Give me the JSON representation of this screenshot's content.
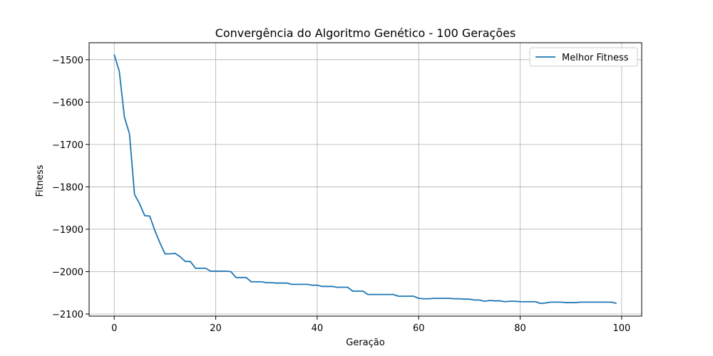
{
  "chart_data": {
    "type": "line",
    "title": "Convergência do Algoritmo Genético - 100 Gerações",
    "xlabel": "Geração",
    "ylabel": "Fitness",
    "xlim": [
      -4.95,
      103.95
    ],
    "ylim": [
      -2105,
      -1460
    ],
    "xticks": [
      0,
      20,
      40,
      60,
      80,
      100
    ],
    "xtick_labels": [
      "0",
      "20",
      "40",
      "60",
      "80",
      "100"
    ],
    "yticks": [
      -1500,
      -1600,
      -1700,
      -1800,
      -1900,
      -2000,
      -2100
    ],
    "ytick_labels": [
      "−1500",
      "−1600",
      "−1700",
      "−1800",
      "−1900",
      "−2000",
      "−2100"
    ],
    "grid": true,
    "legend_position": "top-right",
    "series": [
      {
        "name": "Melhor Fitness",
        "color": "#1f77b4",
        "x": [
          0,
          1,
          2,
          3,
          4,
          5,
          6,
          7,
          8,
          9,
          10,
          11,
          12,
          13,
          14,
          15,
          16,
          17,
          18,
          19,
          20,
          21,
          22,
          23,
          24,
          25,
          26,
          27,
          28,
          29,
          30,
          31,
          32,
          33,
          34,
          35,
          36,
          37,
          38,
          39,
          40,
          41,
          42,
          43,
          44,
          45,
          46,
          47,
          48,
          49,
          50,
          51,
          52,
          53,
          54,
          55,
          56,
          57,
          58,
          59,
          60,
          61,
          62,
          63,
          64,
          65,
          66,
          67,
          68,
          69,
          70,
          71,
          72,
          73,
          74,
          75,
          76,
          77,
          78,
          79,
          80,
          81,
          82,
          83,
          84,
          85,
          86,
          87,
          88,
          89,
          90,
          91,
          92,
          93,
          94,
          95,
          96,
          97,
          98,
          99
        ],
        "y": [
          -1488,
          -1528,
          -1635,
          -1675,
          -1818,
          -1840,
          -1868,
          -1869,
          -1903,
          -1932,
          -1958,
          -1958,
          -1957,
          -1965,
          -1976,
          -1976,
          -1992,
          -1992,
          -1992,
          -1999,
          -1999,
          -1999,
          -1999,
          -2000,
          -2014,
          -2014,
          -2014,
          -2024,
          -2024,
          -2024,
          -2026,
          -2026,
          -2027,
          -2027,
          -2027,
          -2030,
          -2030,
          -2030,
          -2030,
          -2032,
          -2032,
          -2035,
          -2035,
          -2035,
          -2037,
          -2037,
          -2037,
          -2046,
          -2046,
          -2046,
          -2054,
          -2054,
          -2054,
          -2054,
          -2054,
          -2054,
          -2058,
          -2058,
          -2058,
          -2058,
          -2063,
          -2064,
          -2064,
          -2063,
          -2063,
          -2063,
          -2063,
          -2064,
          -2064,
          -2065,
          -2065,
          -2067,
          -2067,
          -2070,
          -2068,
          -2069,
          -2069,
          -2071,
          -2070,
          -2070,
          -2071,
          -2071,
          -2071,
          -2071,
          -2075,
          -2074,
          -2072,
          -2072,
          -2072,
          -2073,
          -2073,
          -2073,
          -2072,
          -2072,
          -2072,
          -2072,
          -2072,
          -2072,
          -2072,
          -2075
        ]
      }
    ]
  }
}
